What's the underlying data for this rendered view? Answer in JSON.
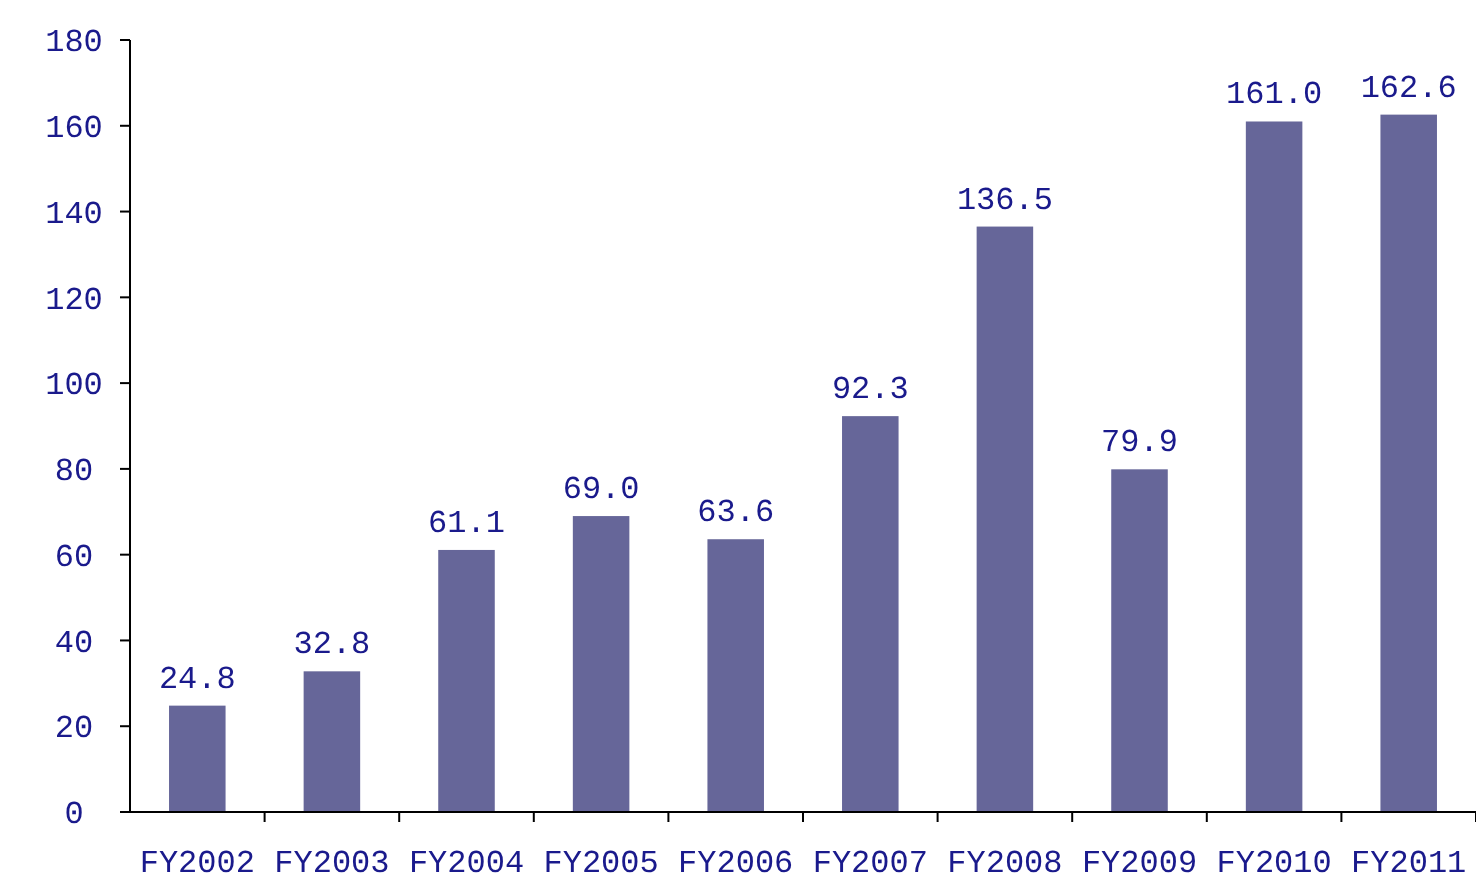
{
  "chart_data": {
    "type": "bar",
    "categories": [
      "FY2002",
      "FY2003",
      "FY2004",
      "FY2005",
      "FY2006",
      "FY2007",
      "FY2008",
      "FY2009",
      "FY2010",
      "FY2011"
    ],
    "values": [
      24.8,
      32.8,
      61.1,
      69.0,
      63.6,
      92.3,
      136.5,
      79.9,
      161.0,
      162.6
    ],
    "value_labels": [
      "24.8",
      "32.8",
      "61.1",
      "69.0",
      "63.6",
      "92.3",
      "136.5",
      "79.9",
      "161.0",
      "162.6"
    ],
    "color": "#666699",
    "ylim": [
      0,
      180
    ],
    "yticks": [
      0,
      20,
      40,
      60,
      80,
      100,
      120,
      140,
      160,
      180
    ],
    "grid": false
  }
}
